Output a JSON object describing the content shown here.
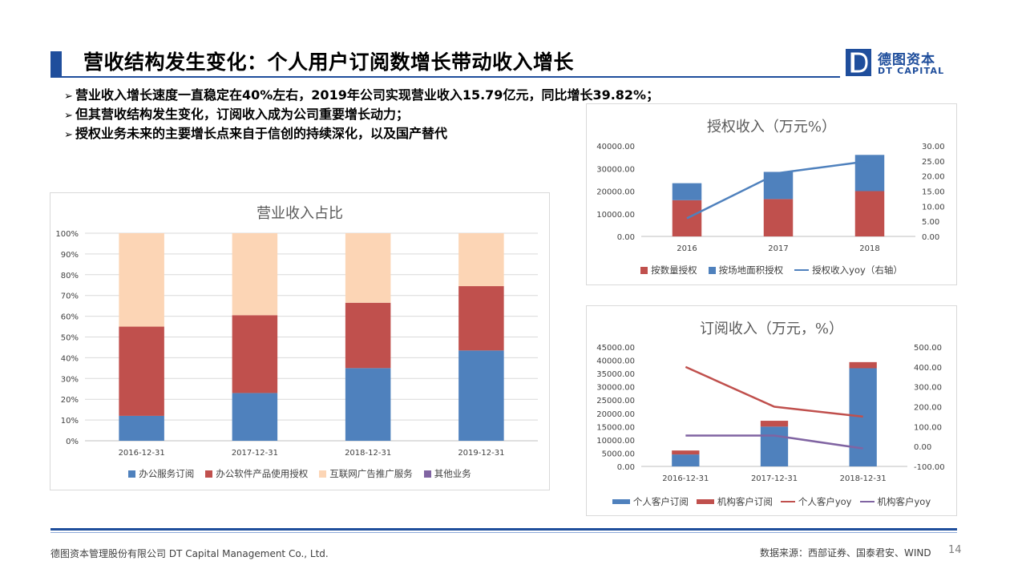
{
  "page": {
    "title": "营收结构发生变化：个人用户订阅数增长带动收入增长",
    "logo_cn": "德图资本",
    "logo_en": "DT CAPITAL",
    "bullets": [
      "营业收入增长速度一直稳定在40%左右，2019年公司实现营业收入15.79亿元，同比增长39.82%；",
      "但其营收结构发生变化，订阅收入成为公司重要增长动力；",
      "授权业务未来的主要增长点来自于信创的持续深化，以及国产替代"
    ],
    "bullet_marker": "➢",
    "footer_left": "德图资本管理股份有限公司  DT Capital Management  Co., Ltd.",
    "footer_right": "数据来源：西部证券、国泰君安、WIND",
    "page_number": "14",
    "accent_color": "#1f4e9c"
  },
  "chart_data": [
    {
      "id": "revenue-share",
      "type": "bar",
      "stacked": true,
      "title": "营业收入占比",
      "categories": [
        "2016-12-31",
        "2017-12-31",
        "2018-12-31",
        "2019-12-31"
      ],
      "series": [
        {
          "name": "办公服务订阅",
          "color": "#4f81bd",
          "values": [
            12,
            23,
            35,
            43.5
          ]
        },
        {
          "name": "办公软件产品使用授权",
          "color": "#c0504d",
          "values": [
            43,
            37.5,
            31.5,
            31
          ]
        },
        {
          "name": "互联网广告推广服务",
          "color": "#fcd5b5",
          "values": [
            45,
            39.5,
            33.5,
            25.5
          ]
        },
        {
          "name": "其他业务",
          "color": "#8064a2",
          "values": [
            0,
            0,
            0,
            0
          ]
        }
      ],
      "y_ticks": [
        "0%",
        "10%",
        "20%",
        "30%",
        "40%",
        "50%",
        "60%",
        "70%",
        "80%",
        "90%",
        "100%"
      ],
      "ylim": [
        0,
        100
      ],
      "grid": true,
      "legend": "bottom"
    },
    {
      "id": "license-revenue",
      "type": "bar",
      "stacked": true,
      "title": "授权收入（万元%）",
      "categories": [
        "2016",
        "2017",
        "2018"
      ],
      "series": [
        {
          "name": "按数量授权",
          "color": "#c0504d",
          "values": [
            16000,
            16500,
            20000
          ]
        },
        {
          "name": "按场地面积授权",
          "color": "#4f81bd",
          "values": [
            7500,
            12000,
            16000
          ]
        }
      ],
      "line_series": [
        {
          "name": "授权收入yoy（右轴）",
          "color": "#4f81bd",
          "values": [
            6,
            21,
            25
          ],
          "axis": "right"
        }
      ],
      "y_ticks": [
        "0.00",
        "10000.00",
        "20000.00",
        "30000.00",
        "40000.00"
      ],
      "ylim": [
        0,
        40000
      ],
      "y2_ticks": [
        "0.00",
        "5.00",
        "10.00",
        "15.00",
        "20.00",
        "25.00",
        "30.00"
      ],
      "y2lim": [
        0,
        30
      ],
      "legend": "bottom"
    },
    {
      "id": "subscription-revenue",
      "type": "bar",
      "stacked": true,
      "title": "订阅收入（万元，%）",
      "categories": [
        "2016-12-31",
        "2017-12-31",
        "2018-12-31"
      ],
      "series": [
        {
          "name": "个人客户订阅",
          "color": "#4f81bd",
          "values": [
            4500,
            15000,
            37000
          ]
        },
        {
          "name": "机构客户订阅",
          "color": "#c0504d",
          "values": [
            1500,
            2200,
            2300
          ]
        }
      ],
      "line_series": [
        {
          "name": "个人客户yoy",
          "color": "#c0504d",
          "values": [
            400,
            200,
            150
          ],
          "axis": "right"
        },
        {
          "name": "机构客户yoy",
          "color": "#8064a2",
          "values": [
            55,
            55,
            -10
          ],
          "axis": "right"
        }
      ],
      "y_ticks": [
        "0.00",
        "5000.00",
        "10000.00",
        "15000.00",
        "20000.00",
        "25000.00",
        "30000.00",
        "35000.00",
        "40000.00",
        "45000.00"
      ],
      "ylim": [
        0,
        45000
      ],
      "y2_ticks": [
        "-100.00",
        "0.00",
        "100.00",
        "200.00",
        "300.00",
        "400.00",
        "500.00"
      ],
      "y2lim": [
        -100,
        500
      ],
      "legend": "bottom"
    }
  ]
}
